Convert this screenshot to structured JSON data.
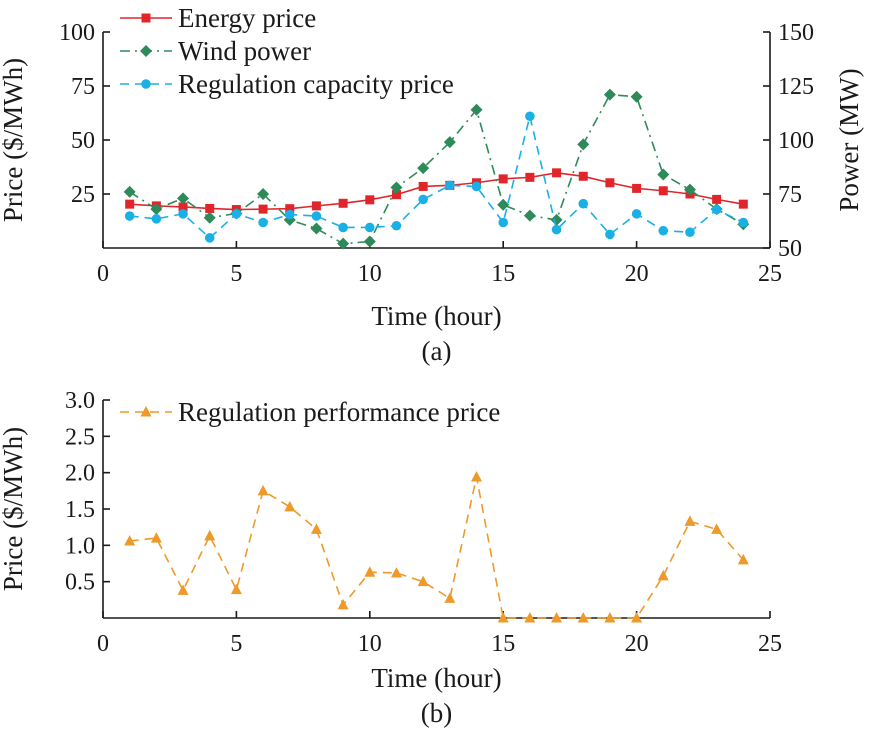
{
  "chart_data": [
    {
      "type": "line",
      "caption": "(a)",
      "xlabel": "Time (hour)",
      "ylabel_left": "Price ($/MWh)",
      "ylabel_right": "Power (MW)",
      "xlim": [
        0,
        25
      ],
      "ylim_left": [
        0,
        100
      ],
      "ylim_right": [
        50,
        150
      ],
      "x_ticks": [
        0,
        5,
        10,
        15,
        20,
        25
      ],
      "y_ticks_left": [
        25,
        50,
        75,
        100
      ],
      "y_ticks_right": [
        50,
        75,
        100,
        125,
        150
      ],
      "legend_position": "top-left",
      "grid": false,
      "x": [
        1,
        2,
        3,
        4,
        5,
        6,
        7,
        8,
        9,
        10,
        11,
        12,
        13,
        14,
        15,
        16,
        17,
        18,
        19,
        20,
        21,
        22,
        23,
        24
      ],
      "series": [
        {
          "name": "Energy price",
          "axis": "left",
          "color": "#e0262b",
          "marker": "square",
          "dash": "solid",
          "values": [
            20.3,
            19.5,
            19,
            18.3,
            17.8,
            18,
            18.2,
            19.5,
            20.7,
            22.3,
            24.7,
            28.5,
            29,
            30.2,
            32,
            32.7,
            34.8,
            33.2,
            30.2,
            27.6,
            26.5,
            25,
            22.5,
            20.3
          ]
        },
        {
          "name": "Wind power",
          "axis": "right",
          "color": "#2f8a5a",
          "marker": "diamond",
          "dash": "dashdot",
          "values": [
            76,
            68,
            73,
            64,
            66,
            75,
            63,
            59,
            52,
            53,
            78,
            87,
            99,
            114,
            70,
            65,
            63,
            98,
            121,
            120,
            84,
            77,
            68,
            61
          ]
        },
        {
          "name": "Regulation capacity price",
          "axis": "left",
          "color": "#1ab0e6",
          "marker": "circle",
          "dash": "dashed",
          "values": [
            14.8,
            13.5,
            15.8,
            4.7,
            15.8,
            11.8,
            15.5,
            14.8,
            9.5,
            9.5,
            10.3,
            22.5,
            29,
            28.5,
            11.8,
            61,
            8.5,
            20.5,
            6.3,
            15.8,
            8,
            7.3,
            17.8,
            11.8
          ]
        }
      ]
    },
    {
      "type": "line",
      "caption": "(b)",
      "xlabel": "Time (hour)",
      "ylabel": "Price ($/MWh)",
      "xlim": [
        0,
        25
      ],
      "ylim": [
        0,
        3.0
      ],
      "x_ticks": [
        0,
        5,
        10,
        15,
        20,
        25
      ],
      "y_ticks": [
        0.5,
        1.0,
        1.5,
        2.0,
        2.5,
        3.0
      ],
      "legend_position": "top-left",
      "grid": false,
      "x": [
        1,
        2,
        3,
        4,
        5,
        6,
        7,
        8,
        9,
        10,
        11,
        12,
        13,
        14,
        15,
        16,
        17,
        18,
        19,
        20,
        21,
        22,
        23,
        24
      ],
      "series": [
        {
          "name": "Regulation performance price",
          "color": "#ee9a2b",
          "marker": "triangle",
          "dash": "dashed",
          "values": [
            1.06,
            1.1,
            0.38,
            1.13,
            0.39,
            1.75,
            1.53,
            1.22,
            0.18,
            0.63,
            0.62,
            0.5,
            0.27,
            1.94,
            0,
            0,
            0,
            0,
            0,
            0,
            0.58,
            1.33,
            1.22,
            0.8
          ]
        }
      ]
    }
  ]
}
